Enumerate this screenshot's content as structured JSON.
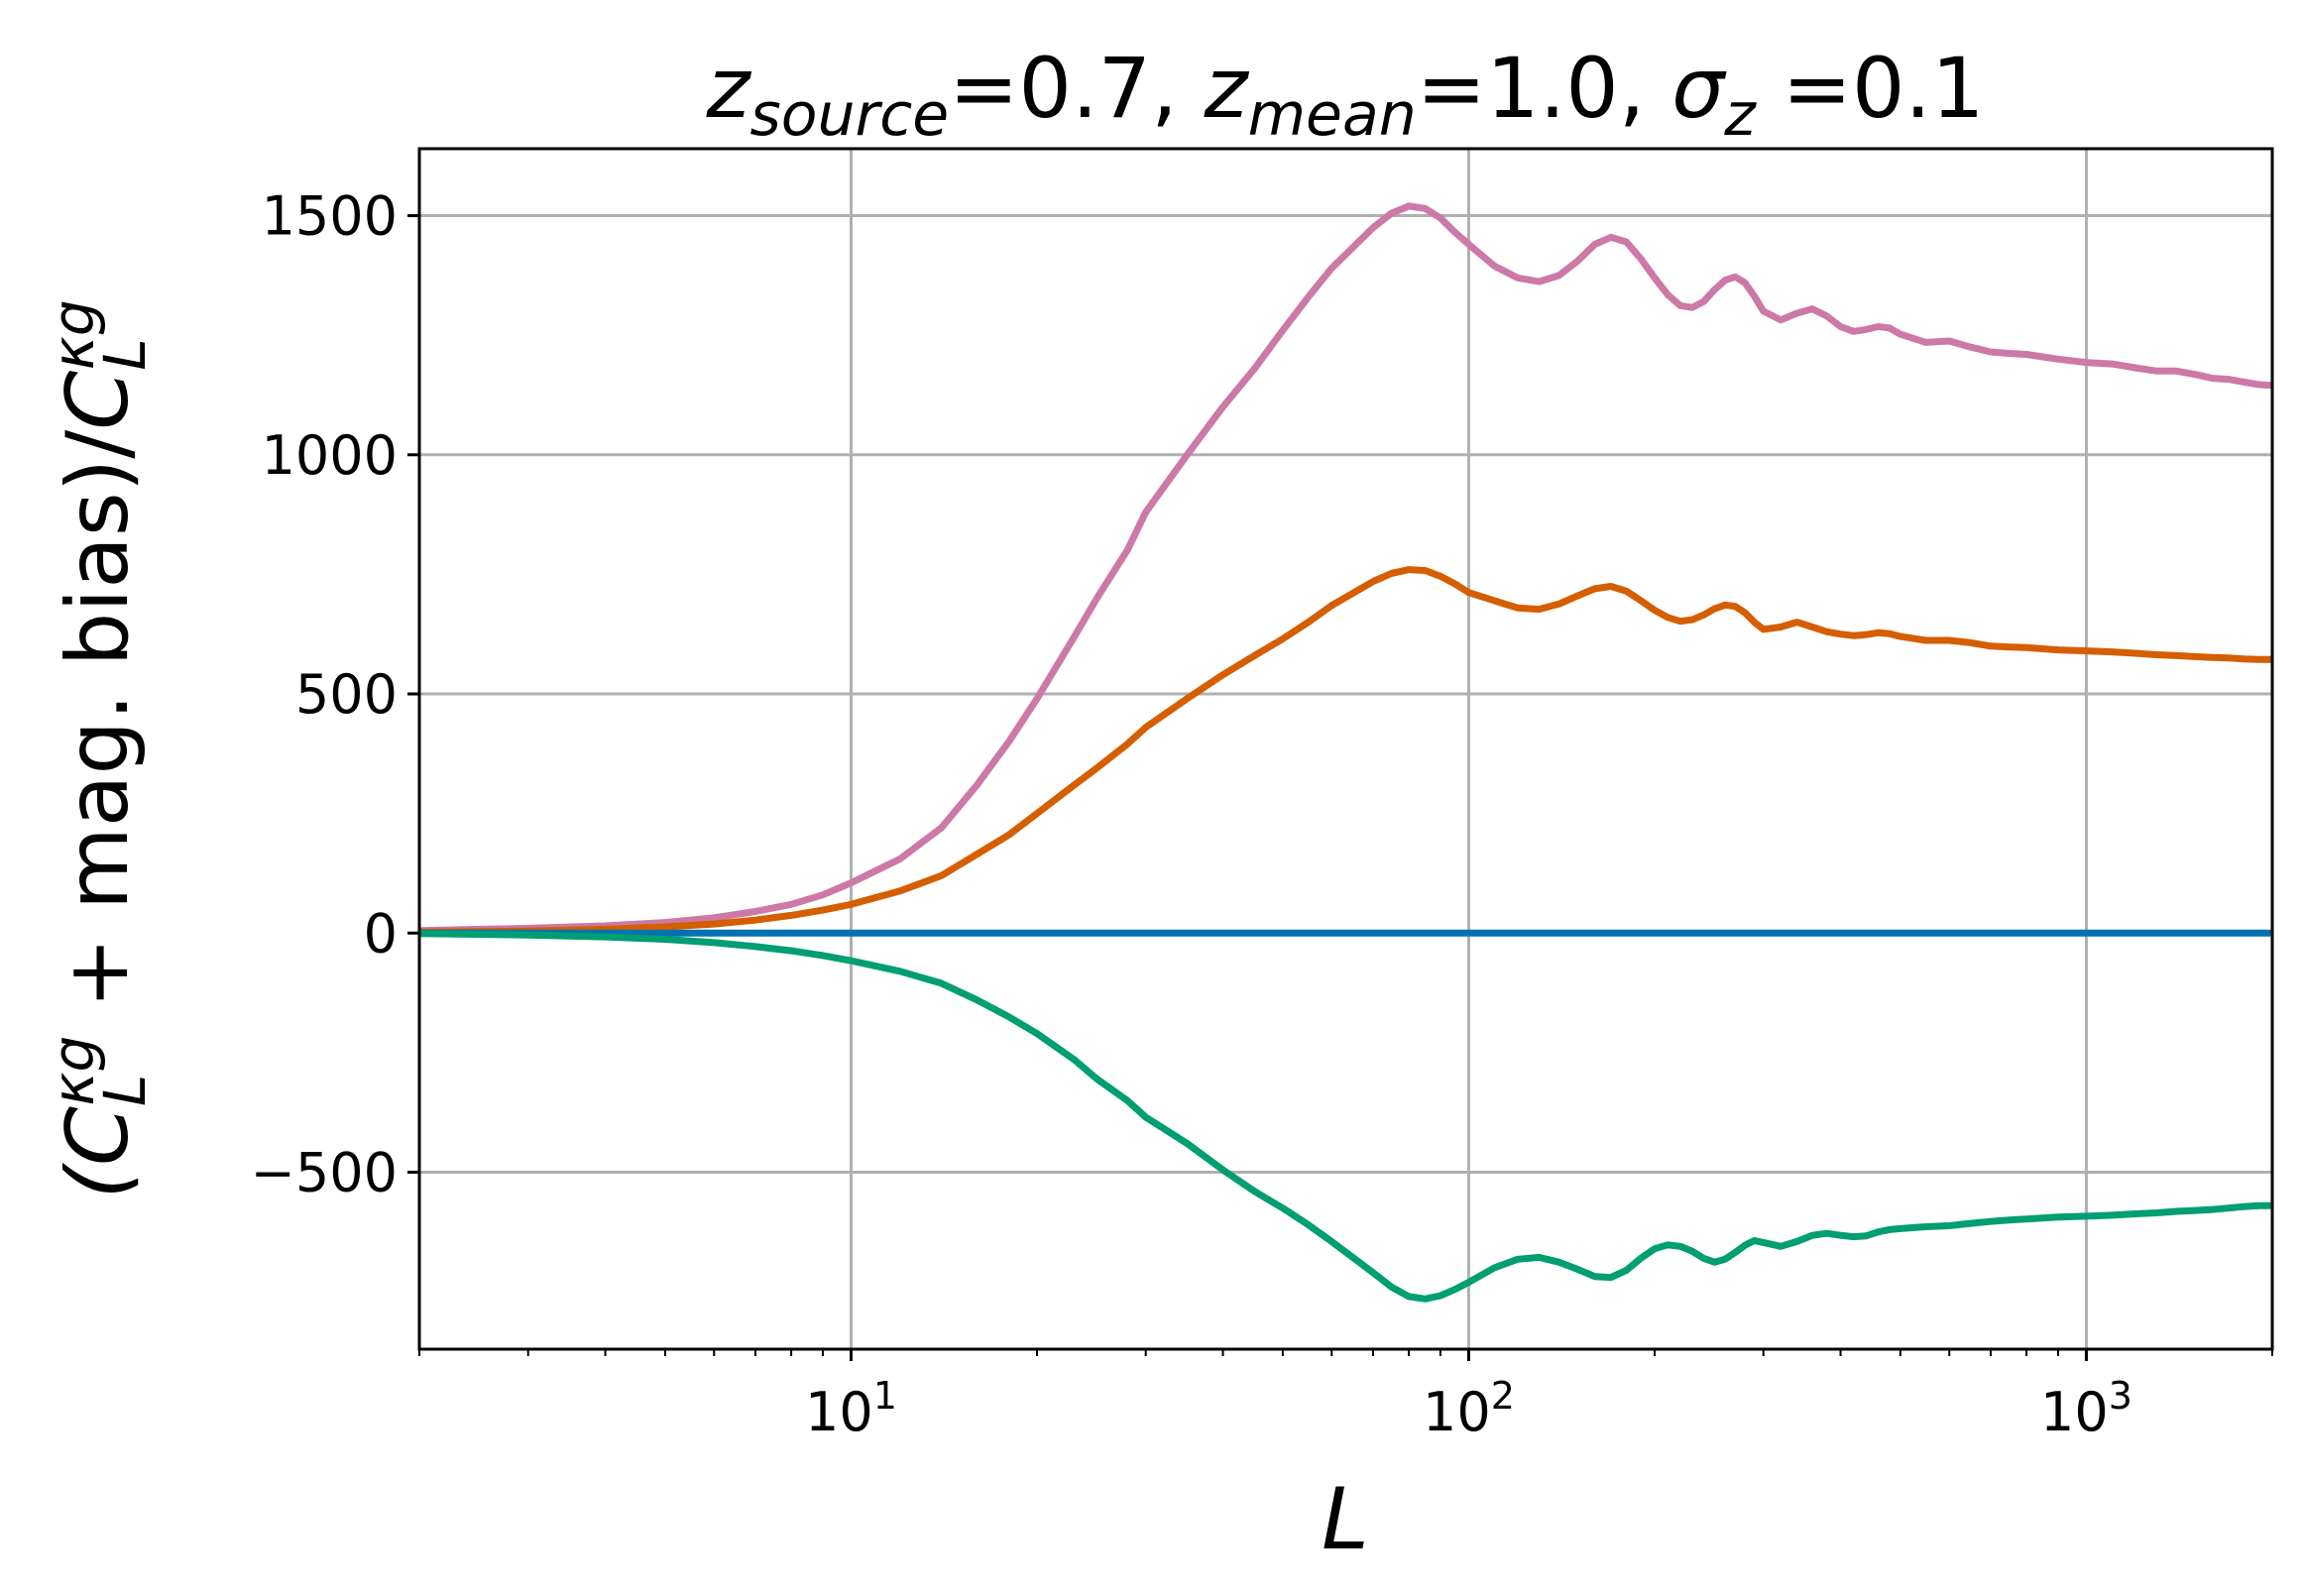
{
  "chart_data": {
    "type": "line",
    "title": {
      "parts": [
        {
          "text": "z",
          "style": "italic",
          "sub": false
        },
        {
          "text": "source",
          "style": "italic",
          "sub": true
        },
        {
          "text": "=0.7, ",
          "style": "normal",
          "sub": false
        },
        {
          "text": "z",
          "style": "italic",
          "sub": false
        },
        {
          "text": "mean",
          "style": "italic",
          "sub": true
        },
        {
          "text": "=1.0, ",
          "style": "normal",
          "sub": false
        },
        {
          "text": "σ",
          "style": "italic",
          "sub": false
        },
        {
          "text": "z",
          "style": "italic",
          "sub": true
        },
        {
          "text": " =0.1",
          "style": "normal",
          "sub": false
        }
      ]
    },
    "xlabel": "L",
    "ylabel": {
      "parts": [
        {
          "text": "(C",
          "style": "italic",
          "pos": "base"
        },
        {
          "text": "L",
          "style": "italic",
          "pos": "sub"
        },
        {
          "text": "κg",
          "style": "italic",
          "pos": "sup"
        },
        {
          "text": " + mag. bias)/",
          "style": "normal",
          "pos": "base"
        },
        {
          "text": "C",
          "style": "italic",
          "pos": "base"
        },
        {
          "text": "L",
          "style": "italic",
          "pos": "sub"
        },
        {
          "text": "κg",
          "style": "italic",
          "pos": "sup"
        }
      ]
    },
    "x_scale": "log",
    "xlim": [
      2,
      2000
    ],
    "ylim": [
      -870,
      1640
    ],
    "yticks": [
      -500,
      0,
      500,
      1000,
      1500
    ],
    "ytick_labels": [
      "−500",
      "0",
      "500",
      "1000",
      "1500"
    ],
    "xticks": [
      10,
      100,
      1000
    ],
    "xtick_labels": [
      {
        "base": "10",
        "exp": "1"
      },
      {
        "base": "10",
        "exp": "2"
      },
      {
        "base": "10",
        "exp": "3"
      }
    ],
    "grid": true,
    "legend": null,
    "series": [
      {
        "name": "pink",
        "color": "#cc79a7",
        "x": [
          2,
          3,
          4,
          5,
          6,
          7,
          8,
          9,
          10,
          12,
          14,
          16,
          18,
          20,
          23,
          25,
          28,
          30,
          35,
          40,
          45,
          50,
          55,
          60,
          70,
          75,
          80,
          85,
          90,
          95,
          100,
          110,
          120,
          130,
          140,
          150,
          160,
          170,
          180,
          190,
          200,
          210,
          220,
          230,
          240,
          250,
          260,
          270,
          280,
          290,
          300,
          320,
          340,
          360,
          380,
          400,
          420,
          440,
          460,
          480,
          500,
          550,
          600,
          650,
          700,
          750,
          800,
          900,
          1000,
          1100,
          1200,
          1300,
          1400,
          1500,
          1600,
          1700,
          1800,
          1900,
          2000
        ],
        "y": [
          5,
          10,
          15,
          22,
          32,
          45,
          60,
          80,
          105,
          155,
          220,
          310,
          400,
          490,
          620,
          700,
          800,
          880,
          1000,
          1100,
          1180,
          1260,
          1330,
          1390,
          1475,
          1505,
          1520,
          1515,
          1495,
          1465,
          1440,
          1395,
          1370,
          1362,
          1375,
          1405,
          1440,
          1455,
          1445,
          1410,
          1370,
          1335,
          1312,
          1308,
          1320,
          1345,
          1365,
          1372,
          1360,
          1332,
          1300,
          1282,
          1296,
          1305,
          1290,
          1268,
          1258,
          1262,
          1268,
          1265,
          1252,
          1235,
          1238,
          1225,
          1215,
          1212,
          1210,
          1200,
          1193,
          1190,
          1182,
          1175,
          1175,
          1168,
          1160,
          1158,
          1152,
          1147,
          1145
        ]
      },
      {
        "name": "orange",
        "color": "#d55e00",
        "x": [
          2,
          3,
          4,
          5,
          6,
          7,
          8,
          9,
          10,
          12,
          14,
          16,
          18,
          20,
          23,
          25,
          28,
          30,
          35,
          40,
          45,
          50,
          55,
          60,
          70,
          75,
          80,
          85,
          90,
          95,
          100,
          110,
          120,
          130,
          140,
          150,
          160,
          170,
          180,
          190,
          200,
          210,
          220,
          230,
          240,
          250,
          260,
          270,
          280,
          290,
          300,
          320,
          340,
          360,
          380,
          400,
          420,
          440,
          460,
          480,
          500,
          550,
          600,
          650,
          700,
          750,
          800,
          900,
          1000,
          1100,
          1200,
          1300,
          1400,
          1500,
          1600,
          1700,
          1800,
          1900,
          2000
        ],
        "y": [
          2,
          4,
          8,
          13,
          19,
          27,
          37,
          48,
          60,
          88,
          120,
          165,
          205,
          250,
          310,
          345,
          395,
          430,
          490,
          540,
          580,
          615,
          650,
          685,
          735,
          752,
          760,
          758,
          746,
          730,
          712,
          695,
          680,
          677,
          688,
          705,
          720,
          725,
          715,
          695,
          675,
          660,
          652,
          655,
          665,
          678,
          686,
          683,
          670,
          650,
          635,
          640,
          650,
          640,
          630,
          625,
          622,
          624,
          628,
          626,
          620,
          612,
          612,
          607,
          600,
          598,
          597,
          592,
          590,
          588,
          585,
          582,
          580,
          578,
          576,
          575,
          573,
          572,
          572
        ]
      },
      {
        "name": "blue",
        "color": "#0072b2",
        "x": [
          2,
          2000
        ],
        "y": [
          0,
          0
        ]
      },
      {
        "name": "green",
        "color": "#009e73",
        "x": [
          2,
          3,
          4,
          5,
          6,
          7,
          8,
          9,
          10,
          12,
          14,
          16,
          18,
          20,
          23,
          25,
          28,
          30,
          35,
          40,
          45,
          50,
          55,
          60,
          70,
          75,
          80,
          85,
          90,
          95,
          100,
          110,
          120,
          130,
          140,
          150,
          160,
          170,
          180,
          190,
          200,
          210,
          220,
          230,
          240,
          250,
          260,
          270,
          280,
          290,
          300,
          320,
          340,
          360,
          380,
          400,
          420,
          440,
          460,
          480,
          500,
          550,
          600,
          650,
          700,
          750,
          800,
          900,
          1000,
          1100,
          1200,
          1300,
          1400,
          1500,
          1600,
          1700,
          1800,
          1900,
          2000
        ],
        "y": [
          -1,
          -4,
          -8,
          -13,
          -20,
          -28,
          -37,
          -47,
          -58,
          -80,
          -105,
          -140,
          -175,
          -210,
          -265,
          -305,
          -350,
          -385,
          -440,
          -495,
          -540,
          -575,
          -610,
          -645,
          -710,
          -740,
          -760,
          -765,
          -758,
          -745,
          -730,
          -700,
          -682,
          -678,
          -688,
          -703,
          -718,
          -720,
          -705,
          -680,
          -660,
          -652,
          -655,
          -665,
          -680,
          -688,
          -682,
          -668,
          -653,
          -643,
          -647,
          -655,
          -645,
          -632,
          -628,
          -632,
          -635,
          -633,
          -625,
          -620,
          -618,
          -614,
          -612,
          -607,
          -603,
          -600,
          -598,
          -594,
          -592,
          -590,
          -587,
          -585,
          -582,
          -580,
          -578,
          -575,
          -572,
          -570,
          -570
        ]
      }
    ]
  }
}
